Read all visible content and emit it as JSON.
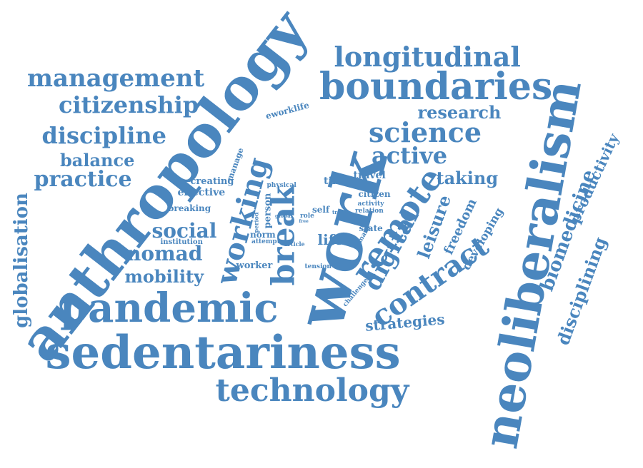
{
  "color": "#4A86BE",
  "words": [
    "anthropology",
    "work",
    "neoliberalism",
    "sedentariness",
    "boundaries",
    "pandemic",
    "remote",
    "technology",
    "break",
    "working",
    "contract",
    "digital",
    "longitudinal",
    "management",
    "citizenship",
    "discipline",
    "science",
    "active",
    "globalisation",
    "biomedicine",
    "productivity",
    "disciplining",
    "research",
    "leisure",
    "freedom",
    "developing",
    "social",
    "nomad",
    "mobility",
    "practice",
    "balance",
    "taking",
    "strategies",
    "effective",
    "creating",
    "breaking",
    "manage",
    "eworklife",
    "time",
    "travel",
    "citizen",
    "activity",
    "relation",
    "physical",
    "person",
    "period",
    "global",
    "role",
    "self",
    "trap",
    "state",
    "free",
    "norm",
    "institution",
    "attempt",
    "life",
    "article",
    "worker",
    "tension",
    "challenge",
    "many"
  ]
}
